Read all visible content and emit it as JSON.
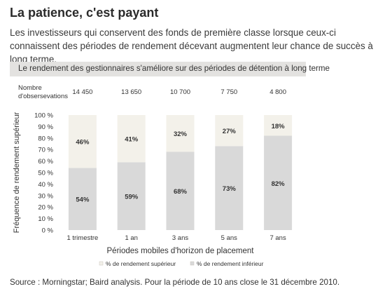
{
  "header": {
    "title": "La patience, c'est payant",
    "subtitle": "Les investisseurs qui conservent des fonds de première classe lorsque ceux-ci connaissent des périodes de rendement décevant augmentent leur chance de succès à long terme."
  },
  "chart_header": {
    "banner": "Le rendement des gestionnaires s'améliore sur des périodes de détention à long terme",
    "observations_label_line1": "Nombre",
    "observations_label_line2": "d'obsersevations"
  },
  "chart_data": {
    "type": "bar",
    "stacked": true,
    "categories": [
      "1 trimestre",
      "1 an",
      "3 ans",
      "5 ans",
      "7 ans"
    ],
    "observations": [
      "14 450",
      "13 650",
      "10 700",
      "7 750",
      "4 800"
    ],
    "series": [
      {
        "name": "% de rendement inférieur",
        "values": [
          54,
          59,
          68,
          73,
          82
        ],
        "labels": [
          "54%",
          "59%",
          "68%",
          "73%",
          "82%"
        ],
        "color": "#d9d9d9"
      },
      {
        "name": "% de rendement supérieur",
        "values": [
          46,
          41,
          32,
          27,
          18
        ],
        "labels": [
          "46%",
          "41%",
          "32%",
          "27%",
          "18%"
        ],
        "color": "#f3f1ea"
      }
    ],
    "xlabel": "Périodes mobiles d'horizon de placement",
    "ylabel": "Fréquence de rendement supérieur",
    "ylim": [
      0,
      100
    ],
    "yticks": [
      "0 %",
      "10 %",
      "20 %",
      "30 %",
      "40 %",
      "50 %",
      "60 %",
      "70 %",
      "80 %",
      "90 %",
      "100 %"
    ],
    "legend": [
      {
        "label": "% de rendement supérieur",
        "color": "#f3f1ea"
      },
      {
        "label": "% de rendement inférieur",
        "color": "#d9d9d9"
      }
    ],
    "legend_position": "bottom",
    "grid": false
  },
  "footer": {
    "source": "Source : Morningstar; Baird analysis. Pour la période de 10 ans close le 31 décembre 2010."
  }
}
